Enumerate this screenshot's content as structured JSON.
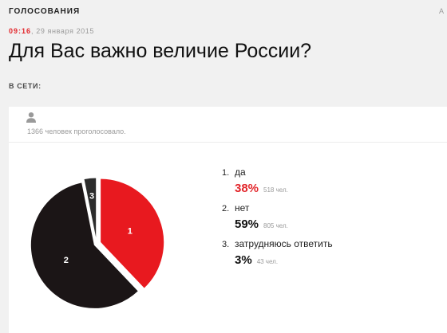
{
  "header": {
    "section": "ГОЛОСОВАНИЯ",
    "corner": "А",
    "time": "09:16",
    "separator": ",",
    "date": "29 января 2015",
    "title": "Для Вас важно величие России?",
    "online_label": "В СЕТИ:"
  },
  "poll": {
    "votes_text": "1366 человек проголосовало.",
    "icons": {
      "voters": "user-icon"
    },
    "colors": {
      "red": "#e8191f",
      "black": "#1b1516",
      "dark_gray": "#2c2c2c",
      "accent": "#e2262b"
    },
    "options": [
      {
        "number": "1.",
        "label": "да",
        "percent": "38%",
        "count": "518 чел.",
        "highlight": true
      },
      {
        "number": "2.",
        "label": "нет",
        "percent": "59%",
        "count": "805 чел.",
        "highlight": false
      },
      {
        "number": "3.",
        "label": "затрудняюсь ответить",
        "percent": "3%",
        "count": "43 чел.",
        "highlight": false
      }
    ]
  },
  "chart_data": {
    "type": "pie",
    "categories": [
      "1",
      "2",
      "3"
    ],
    "values": [
      518,
      805,
      43
    ],
    "percent_labels": [
      "38%",
      "59%",
      "3%"
    ],
    "slice_labels": [
      "1",
      "2",
      "3"
    ],
    "colors": [
      "#e8191f",
      "#1b1516",
      "#2c2c2c"
    ]
  }
}
